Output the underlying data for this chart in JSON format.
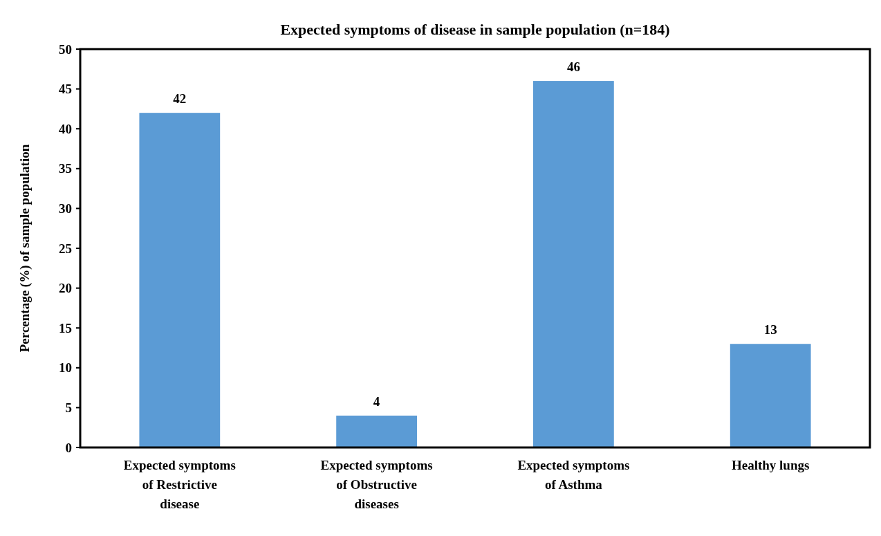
{
  "chart_data": {
    "type": "bar",
    "title": "Expected symptoms of disease in sample population (n=184)",
    "ylabel": "Percentage (%) of sample population",
    "categories": [
      "Expected symptoms of Restrictive disease",
      "Expected symptoms of Obstructive diseases",
      "Expected symptoms of Asthma",
      "Healthy lungs"
    ],
    "values": [
      42,
      4,
      46,
      13
    ],
    "color": "#5b9bd5",
    "data_labels": true,
    "ylim": [
      0,
      50
    ],
    "yticks": [
      0,
      5,
      10,
      15,
      20,
      25,
      30,
      35,
      40,
      45,
      50
    ],
    "grid": false
  }
}
